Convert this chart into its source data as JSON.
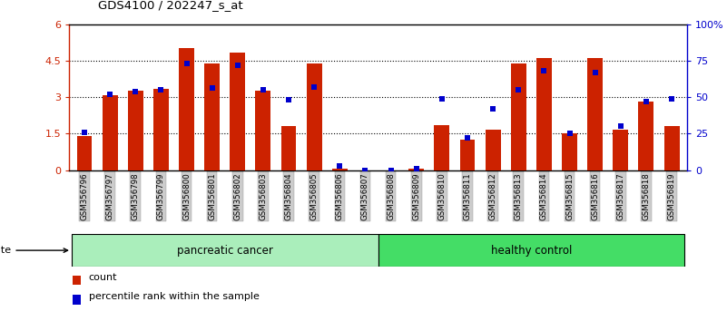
{
  "title": "GDS4100 / 202247_s_at",
  "samples": [
    "GSM356796",
    "GSM356797",
    "GSM356798",
    "GSM356799",
    "GSM356800",
    "GSM356801",
    "GSM356802",
    "GSM356803",
    "GSM356804",
    "GSM356805",
    "GSM356806",
    "GSM356807",
    "GSM356808",
    "GSM356809",
    "GSM356810",
    "GSM356811",
    "GSM356812",
    "GSM356813",
    "GSM356814",
    "GSM356815",
    "GSM356816",
    "GSM356817",
    "GSM356818",
    "GSM356819"
  ],
  "count_values": [
    1.42,
    3.08,
    3.27,
    3.35,
    5.0,
    4.38,
    4.82,
    3.27,
    1.8,
    4.38,
    0.07,
    0.0,
    0.0,
    0.05,
    1.85,
    1.27,
    1.68,
    4.38,
    4.6,
    1.5,
    4.6,
    1.65,
    2.82,
    1.82
  ],
  "percentile_values": [
    26,
    52,
    54,
    55,
    73,
    56,
    72,
    55,
    48,
    57,
    3,
    0,
    0,
    1,
    49,
    22,
    42,
    55,
    68,
    25,
    67,
    30,
    47,
    49
  ],
  "bar_color": "#CC2200",
  "dot_color": "#0000CC",
  "pancreatic_color": "#AAEEBB",
  "healthy_color": "#44DD66",
  "ylim_left": [
    0,
    6
  ],
  "ylim_right": [
    0,
    100
  ],
  "yticks_left": [
    0,
    1.5,
    3.0,
    4.5,
    6.0
  ],
  "ytick_labels_left": [
    "0",
    "1.5",
    "3",
    "4.5",
    "6"
  ],
  "yticks_right": [
    0,
    25,
    50,
    75,
    100
  ],
  "ytick_labels_right": [
    "0",
    "25",
    "50",
    "75",
    "100%"
  ],
  "n_pancreatic": 12,
  "n_healthy": 12
}
